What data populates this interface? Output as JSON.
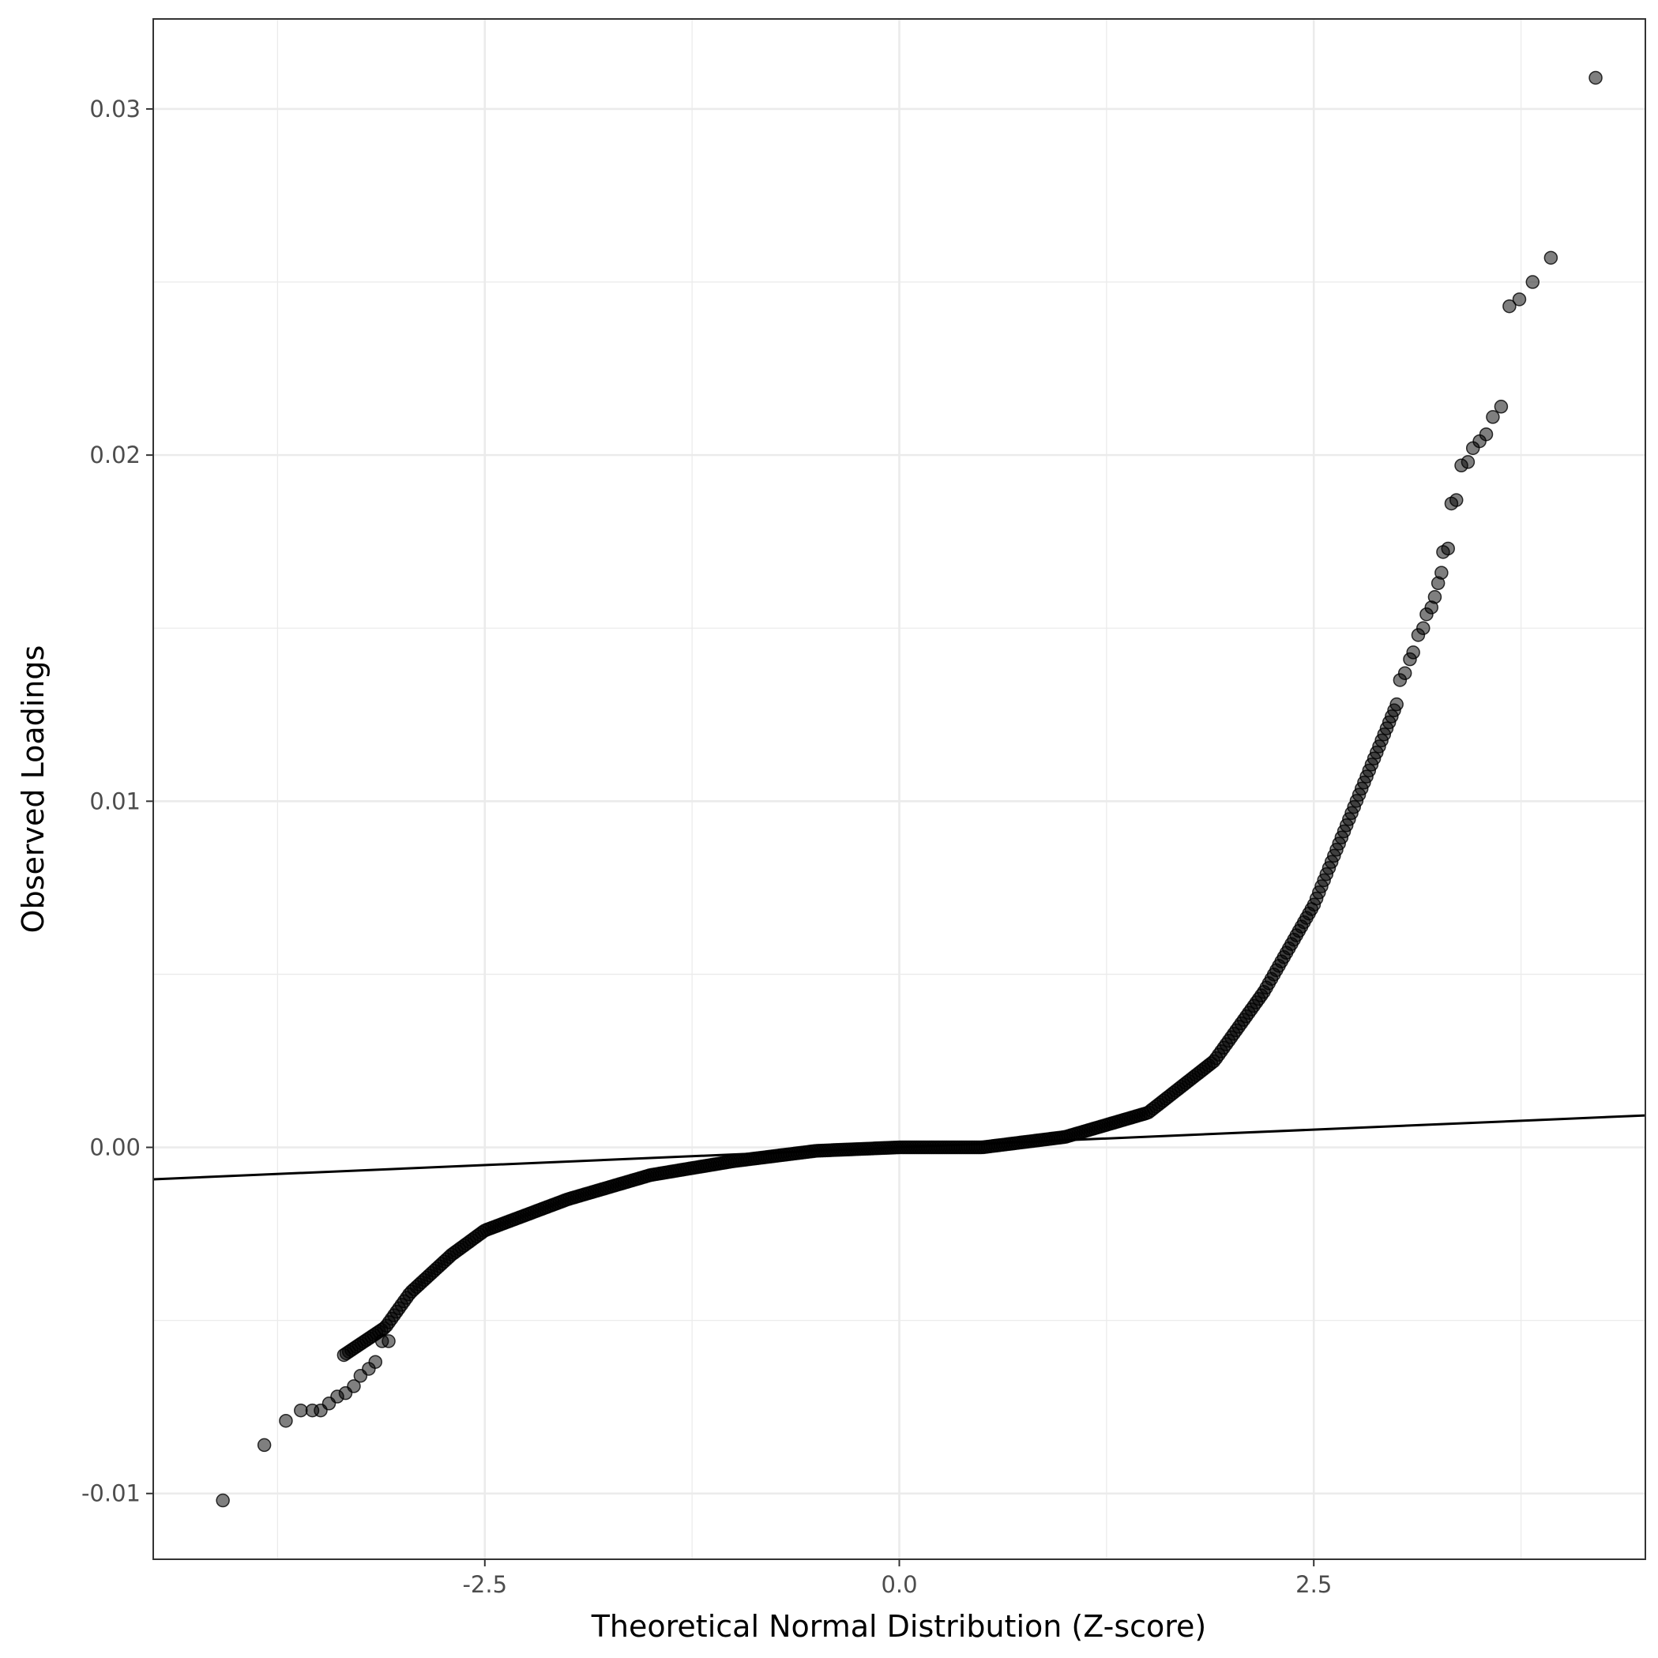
{
  "chart_data": {
    "type": "scatter",
    "xlabel": "Theoretical Normal Distribution (Z-score)",
    "ylabel": "Observed Loadings",
    "xlim": [
      -4.5,
      4.5
    ],
    "ylim": [
      -0.0119,
      0.0326
    ],
    "x_ticks": [
      {
        "value": -2.5,
        "label": "-2.5"
      },
      {
        "value": 0.0,
        "label": "0.0"
      },
      {
        "value": 2.5,
        "label": "2.5"
      }
    ],
    "y_ticks": [
      {
        "value": -0.01,
        "label": "-0.01"
      },
      {
        "value": 0.0,
        "label": "0.00"
      },
      {
        "value": 0.01,
        "label": "0.01"
      },
      {
        "value": 0.02,
        "label": "0.02"
      },
      {
        "value": 0.03,
        "label": "0.03"
      }
    ],
    "grid": true,
    "theme": "bw",
    "point_color": "#000000",
    "point_opacity": 0.5,
    "reference_line": {
      "slope": 0.000205,
      "intercept": 0.0
    },
    "curve_model": {
      "x_range": [
        -3.35,
        3.0
      ],
      "knots": [
        [
          -3.35,
          -0.006
        ],
        [
          -3.1,
          -0.0052
        ],
        [
          -2.95,
          -0.0042
        ],
        [
          -2.7,
          -0.0031
        ],
        [
          -2.5,
          -0.0024
        ],
        [
          -2.0,
          -0.0015
        ],
        [
          -1.5,
          -0.0008
        ],
        [
          -1.0,
          -0.0004
        ],
        [
          -0.5,
          -0.0001
        ],
        [
          0.0,
          0.0
        ],
        [
          0.5,
          0.0
        ],
        [
          1.0,
          0.0003
        ],
        [
          1.5,
          0.001
        ],
        [
          1.9,
          0.0025
        ],
        [
          2.2,
          0.0045
        ],
        [
          2.5,
          0.007
        ],
        [
          2.8,
          0.0105
        ],
        [
          3.0,
          0.0128
        ]
      ],
      "note": ""
    },
    "outliers": [
      {
        "x": -4.08,
        "y": -0.0102
      },
      {
        "x": -3.83,
        "y": -0.0086
      },
      {
        "x": -3.7,
        "y": -0.0079
      },
      {
        "x": -3.61,
        "y": -0.0076
      },
      {
        "x": -3.54,
        "y": -0.0076
      },
      {
        "x": -3.49,
        "y": -0.0076
      },
      {
        "x": -3.44,
        "y": -0.0074
      },
      {
        "x": -3.39,
        "y": -0.0072
      },
      {
        "x": -3.34,
        "y": -0.0071
      },
      {
        "x": -3.29,
        "y": -0.0069
      },
      {
        "x": -3.25,
        "y": -0.0066
      },
      {
        "x": -3.2,
        "y": -0.0064
      },
      {
        "x": -3.16,
        "y": -0.0062
      },
      {
        "x": -3.12,
        "y": -0.0056
      },
      {
        "x": -3.08,
        "y": -0.0056
      },
      {
        "x": 3.02,
        "y": 0.0135
      },
      {
        "x": 3.05,
        "y": 0.0137
      },
      {
        "x": 3.08,
        "y": 0.0141
      },
      {
        "x": 3.1,
        "y": 0.0143
      },
      {
        "x": 3.13,
        "y": 0.0148
      },
      {
        "x": 3.16,
        "y": 0.015
      },
      {
        "x": 3.18,
        "y": 0.0154
      },
      {
        "x": 3.21,
        "y": 0.0156
      },
      {
        "x": 3.23,
        "y": 0.0159
      },
      {
        "x": 3.25,
        "y": 0.0163
      },
      {
        "x": 3.27,
        "y": 0.0166
      },
      {
        "x": 3.28,
        "y": 0.0172
      },
      {
        "x": 3.31,
        "y": 0.0173
      },
      {
        "x": 3.33,
        "y": 0.0186
      },
      {
        "x": 3.36,
        "y": 0.0187
      },
      {
        "x": 3.39,
        "y": 0.0197
      },
      {
        "x": 3.43,
        "y": 0.0198
      },
      {
        "x": 3.46,
        "y": 0.0202
      },
      {
        "x": 3.5,
        "y": 0.0204
      },
      {
        "x": 3.54,
        "y": 0.0206
      },
      {
        "x": 3.58,
        "y": 0.0211
      },
      {
        "x": 3.63,
        "y": 0.0214
      },
      {
        "x": 3.68,
        "y": 0.0243
      },
      {
        "x": 3.74,
        "y": 0.0245
      },
      {
        "x": 3.82,
        "y": 0.025
      },
      {
        "x": 3.93,
        "y": 0.0257
      },
      {
        "x": 4.2,
        "y": 0.0309
      }
    ]
  }
}
